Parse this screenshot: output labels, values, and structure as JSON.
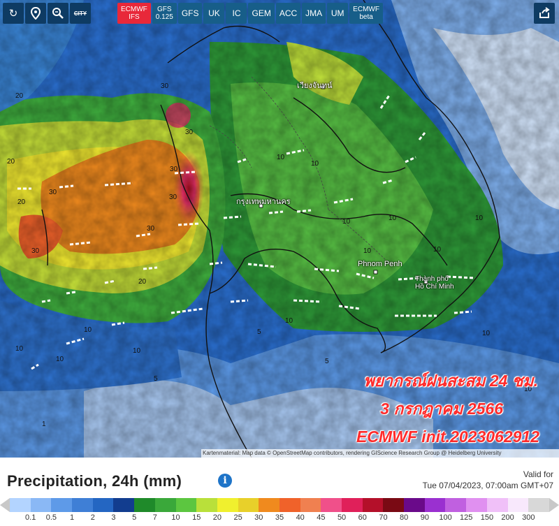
{
  "toolbar": {
    "buttons": [
      {
        "icon": "refresh-icon"
      },
      {
        "icon": "location-pin-icon"
      },
      {
        "icon": "zoom-icon"
      },
      {
        "label": "CITY"
      }
    ],
    "models": [
      {
        "line1": "ECMWF",
        "line2": "IFS",
        "active": true
      },
      {
        "line1": "GFS",
        "line2": "0.125",
        "active": false
      },
      {
        "line1": "GFS",
        "line2": "",
        "active": false
      },
      {
        "line1": "UK",
        "line2": "",
        "active": false
      },
      {
        "line1": "IC",
        "line2": "",
        "active": false
      },
      {
        "line1": "GEM",
        "line2": "",
        "active": false
      },
      {
        "line1": "ACC",
        "line2": "",
        "active": false
      },
      {
        "line1": "JMA",
        "line2": "",
        "active": false
      },
      {
        "line1": "UM",
        "line2": "",
        "active": false
      },
      {
        "line1": "ECMWF",
        "line2": "beta",
        "active": false
      }
    ],
    "share_icon": "share-icon"
  },
  "map": {
    "cities": [
      {
        "name": "กรุงเทพมหานคร"
      },
      {
        "name": "Phnom Penh"
      },
      {
        "name": "Thành phố"
      },
      {
        "name": "Hồ Chí Minh"
      },
      {
        "name": "เวียงจันทน์"
      }
    ],
    "overlay": {
      "line1": "พยากรณ์ฝนสะสม 24 ชม.",
      "line2": "3 กรกฎาคม 2566",
      "line3": "ECMWF init.2023062912"
    },
    "attribution": "Kartenmaterial: Map data © OpenStreetMap contributors, rendering GIScience Research Group @ Heidelberg University"
  },
  "panel": {
    "title": "Precipitation, 24h (mm)",
    "info_icon": "info-icon",
    "valid_label": "Valid for",
    "valid_time": "Tue 07/04/2023, 07:00am GMT+07"
  },
  "scale": {
    "colors": [
      "#b3d4ff",
      "#8ab8f5",
      "#5e9ae8",
      "#3f7fd6",
      "#2466c2",
      "#123d8f",
      "#1f8a2a",
      "#3aa83a",
      "#5cc640",
      "#b9e03a",
      "#f0f02e",
      "#e8d02a",
      "#f08a1e",
      "#f0622a",
      "#f08050",
      "#f0508a",
      "#e0205a",
      "#b4102a",
      "#7a0a14",
      "#6a0a8a",
      "#9a30d0",
      "#c060e0",
      "#e090f0",
      "#f0c0f8",
      "#f8e8fc",
      "#d8d8d8"
    ],
    "labels": [
      "0.1",
      "0.5",
      "1",
      "2",
      "3",
      "5",
      "7",
      "10",
      "15",
      "20",
      "25",
      "30",
      "35",
      "40",
      "45",
      "50",
      "60",
      "70",
      "80",
      "90",
      "100",
      "125",
      "150",
      "200",
      "300"
    ]
  }
}
